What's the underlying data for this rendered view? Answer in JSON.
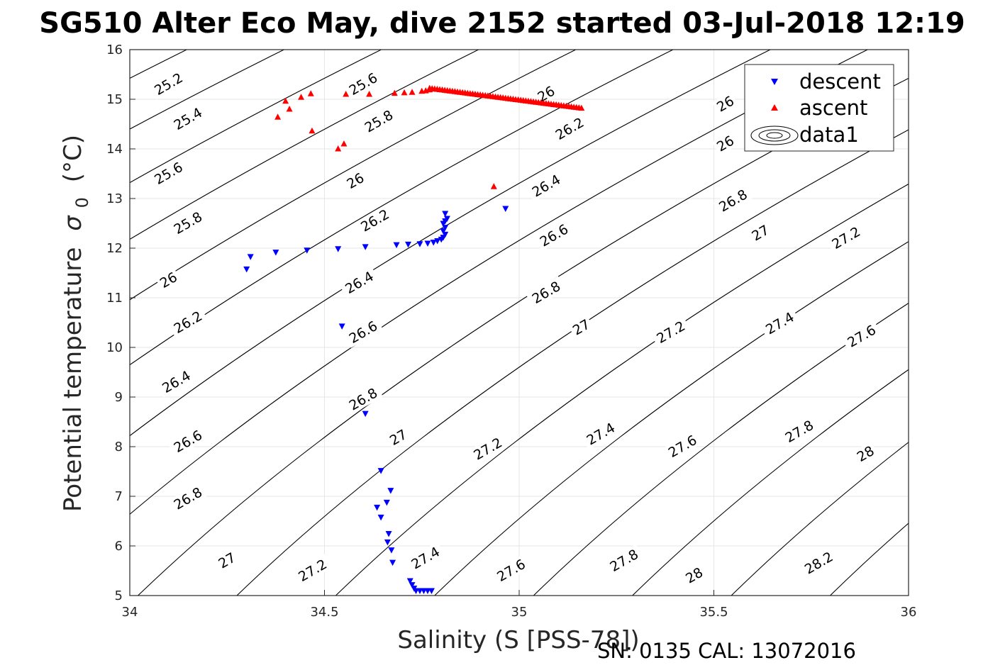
{
  "chart_data": {
    "type": "scatter",
    "title": "SG510 Alter Eco May, dive 2152 started 03-Jul-2018 12:19",
    "xlabel": "Salinity (S [PSS-78])",
    "ylabel_main": "Potential temperature",
    "ylabel_sym": "σ",
    "ylabel_sub": "0",
    "ylabel_unit": "(°C)",
    "footer": "SN: 0135  CAL: 13072016",
    "xlim": [
      34,
      36
    ],
    "ylim": [
      5,
      16
    ],
    "xticks": [
      34,
      34.5,
      35,
      35.5,
      36
    ],
    "xtick_labels": [
      "34",
      "34.5",
      "35",
      "35.5",
      "36"
    ],
    "yticks": [
      5,
      6,
      7,
      8,
      9,
      10,
      11,
      12,
      13,
      14,
      15,
      16
    ],
    "ytick_labels": [
      "5",
      "6",
      "7",
      "8",
      "9",
      "10",
      "11",
      "12",
      "13",
      "14",
      "15",
      "16"
    ],
    "grid": true,
    "legend_position": "top-right",
    "legend": [
      {
        "label": "descent",
        "marker": "triangle-down",
        "color": "#0000ff"
      },
      {
        "label": "ascent",
        "marker": "triangle-up",
        "color": "#ff0000"
      },
      {
        "label": "data1",
        "marker": "contour",
        "color": "#000000"
      }
    ],
    "contours": {
      "levels": [
        25.2,
        25.4,
        25.6,
        25.8,
        26,
        26.2,
        26.4,
        26.6,
        26.8,
        27,
        27.2,
        27.4,
        27.6,
        27.8,
        28,
        28.2
      ],
      "label_positions": [
        {
          "text": "25.2",
          "x": 34.1,
          "y": 15.3
        },
        {
          "text": "25.4",
          "x": 34.15,
          "y": 14.6
        },
        {
          "text": "25.6",
          "x": 34.1,
          "y": 13.5
        },
        {
          "text": "25.8",
          "x": 34.15,
          "y": 12.5
        },
        {
          "text": "26",
          "x": 34.1,
          "y": 11.35
        },
        {
          "text": "26.2",
          "x": 34.15,
          "y": 10.5
        },
        {
          "text": "26.4",
          "x": 34.12,
          "y": 9.3
        },
        {
          "text": "26.6",
          "x": 34.15,
          "y": 8.1
        },
        {
          "text": "26.8",
          "x": 34.15,
          "y": 6.95
        },
        {
          "text": "27",
          "x": 34.25,
          "y": 5.7
        },
        {
          "text": "27.2",
          "x": 34.47,
          "y": 5.5
        },
        {
          "text": "27.4",
          "x": 34.76,
          "y": 5.75
        },
        {
          "text": "27.6",
          "x": 34.98,
          "y": 5.5
        },
        {
          "text": "27.8",
          "x": 35.27,
          "y": 5.7
        },
        {
          "text": "28",
          "x": 35.45,
          "y": 5.4
        },
        {
          "text": "28.2",
          "x": 35.77,
          "y": 5.65
        },
        {
          "text": "25.6",
          "x": 34.6,
          "y": 15.3
        },
        {
          "text": "25.8",
          "x": 34.64,
          "y": 14.55
        },
        {
          "text": "26",
          "x": 34.58,
          "y": 13.35
        },
        {
          "text": "26.2",
          "x": 34.63,
          "y": 12.55
        },
        {
          "text": "26.4",
          "x": 34.59,
          "y": 11.3
        },
        {
          "text": "26.6",
          "x": 34.6,
          "y": 10.3
        },
        {
          "text": "26.8",
          "x": 34.6,
          "y": 8.95
        },
        {
          "text": "27",
          "x": 34.69,
          "y": 8.18
        },
        {
          "text": "27.2",
          "x": 34.92,
          "y": 7.95
        },
        {
          "text": "27.4",
          "x": 35.21,
          "y": 8.25
        },
        {
          "text": "27.6",
          "x": 35.42,
          "y": 8.0
        },
        {
          "text": "27.8",
          "x": 35.72,
          "y": 8.3
        },
        {
          "text": "28",
          "x": 35.89,
          "y": 7.85
        },
        {
          "text": "26",
          "x": 35.07,
          "y": 15.1
        },
        {
          "text": "26.2",
          "x": 35.13,
          "y": 14.4
        },
        {
          "text": "26.4",
          "x": 35.07,
          "y": 13.25
        },
        {
          "text": "26.6",
          "x": 35.09,
          "y": 12.25
        },
        {
          "text": "26.8",
          "x": 35.07,
          "y": 11.1
        },
        {
          "text": "27",
          "x": 35.16,
          "y": 10.4
        },
        {
          "text": "27.2",
          "x": 35.39,
          "y": 10.3
        },
        {
          "text": "27.4",
          "x": 35.67,
          "y": 10.48
        },
        {
          "text": "27.6",
          "x": 35.88,
          "y": 10.22
        },
        {
          "text": "26",
          "x": 35.53,
          "y": 14.9
        },
        {
          "text": "26",
          "x": 35.53,
          "y": 14.1
        },
        {
          "text": "26.8",
          "x": 35.55,
          "y": 12.95
        },
        {
          "text": "27",
          "x": 35.62,
          "y": 12.3
        },
        {
          "text": "27.2",
          "x": 35.84,
          "y": 12.2
        }
      ]
    },
    "series": [
      {
        "name": "descent",
        "marker": "triangle-down",
        "color": "#0000ff",
        "points": [
          [
            34.3,
            11.58
          ],
          [
            34.31,
            11.83
          ],
          [
            34.375,
            11.92
          ],
          [
            34.455,
            11.96
          ],
          [
            34.535,
            11.99
          ],
          [
            34.605,
            12.03
          ],
          [
            34.685,
            12.07
          ],
          [
            34.715,
            12.08
          ],
          [
            34.745,
            12.09
          ],
          [
            34.765,
            12.1
          ],
          [
            34.78,
            12.12
          ],
          [
            34.79,
            12.15
          ],
          [
            34.8,
            12.18
          ],
          [
            34.805,
            12.22
          ],
          [
            34.81,
            12.28
          ],
          [
            34.805,
            12.35
          ],
          [
            34.81,
            12.42
          ],
          [
            34.805,
            12.5
          ],
          [
            34.81,
            12.55
          ],
          [
            34.815,
            12.6
          ],
          [
            34.81,
            12.7
          ],
          [
            34.965,
            12.8
          ],
          [
            34.545,
            10.43
          ],
          [
            34.605,
            8.67
          ],
          [
            34.645,
            7.52
          ],
          [
            34.67,
            7.12
          ],
          [
            34.66,
            6.88
          ],
          [
            34.635,
            6.78
          ],
          [
            34.645,
            6.58
          ],
          [
            34.665,
            6.25
          ],
          [
            34.662,
            6.08
          ],
          [
            34.672,
            5.92
          ],
          [
            34.675,
            5.67
          ],
          [
            34.72,
            5.3
          ],
          [
            34.725,
            5.22
          ],
          [
            34.73,
            5.15
          ],
          [
            34.735,
            5.1
          ],
          [
            34.745,
            5.1
          ],
          [
            34.755,
            5.1
          ],
          [
            34.765,
            5.1
          ],
          [
            34.775,
            5.1
          ]
        ]
      },
      {
        "name": "ascent",
        "marker": "triangle-up",
        "color": "#ff0000",
        "points": [
          [
            34.38,
            14.64
          ],
          [
            34.4,
            14.96
          ],
          [
            34.41,
            14.8
          ],
          [
            34.44,
            15.04
          ],
          [
            34.465,
            15.11
          ],
          [
            34.468,
            14.36
          ],
          [
            34.535,
            14.0
          ],
          [
            34.55,
            14.1
          ],
          [
            34.555,
            15.1
          ],
          [
            34.615,
            15.1
          ],
          [
            34.68,
            15.12
          ],
          [
            34.705,
            15.13
          ],
          [
            34.725,
            15.14
          ],
          [
            34.75,
            15.16
          ],
          [
            34.76,
            15.17
          ],
          [
            34.77,
            15.19
          ],
          [
            34.935,
            13.24
          ]
        ],
        "line": {
          "from": [
            34.77,
            15.22
          ],
          "to": [
            35.16,
            14.82
          ]
        }
      }
    ]
  }
}
